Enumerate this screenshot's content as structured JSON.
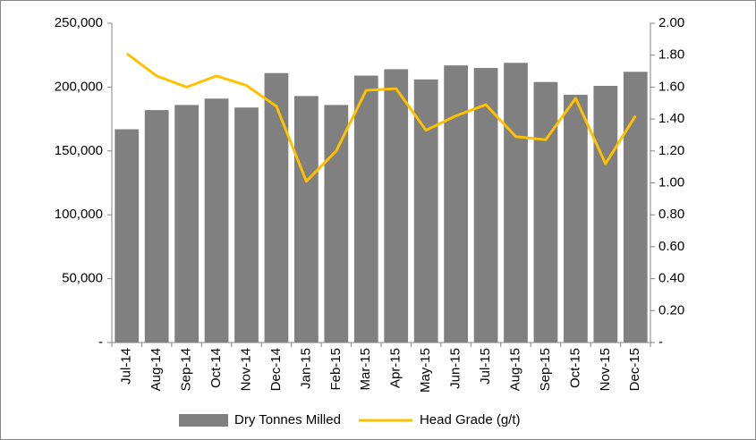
{
  "chart_data": {
    "type": "bar-line",
    "categories": [
      "Jul-14",
      "Aug-14",
      "Sep-14",
      "Oct-14",
      "Nov-14",
      "Dec-14",
      "Jan-15",
      "Feb-15",
      "Mar-15",
      "Apr-15",
      "May-15",
      "Jun-15",
      "Jul-15",
      "Aug-15",
      "Sep-15",
      "Oct-15",
      "Nov-15",
      "Dec-15"
    ],
    "series": [
      {
        "name": "Dry Tonnes Milled",
        "type": "bar",
        "color": "#808080",
        "axis": "y",
        "values": [
          167000,
          182000,
          186000,
          191000,
          184000,
          211000,
          193000,
          186000,
          209000,
          214000,
          206000,
          217000,
          215000,
          219000,
          204000,
          194000,
          201000,
          212000
        ]
      },
      {
        "name": "Head Grade (g/t)",
        "type": "line",
        "color": "#FFC000",
        "axis": "y2",
        "values": [
          1.81,
          1.67,
          1.6,
          1.67,
          1.61,
          1.48,
          1.01,
          1.2,
          1.58,
          1.59,
          1.33,
          1.42,
          1.49,
          1.29,
          1.27,
          1.53,
          1.12,
          1.42
        ]
      }
    ],
    "ylim": [
      0,
      250000
    ],
    "yticks": [
      {
        "value": 0,
        "label": "-"
      },
      {
        "value": 50000,
        "label": "50,000"
      },
      {
        "value": 100000,
        "label": "100,000"
      },
      {
        "value": 150000,
        "label": "150,000"
      },
      {
        "value": 200000,
        "label": "200,000"
      },
      {
        "value": 250000,
        "label": "250,000"
      }
    ],
    "y2lim": [
      0,
      2
    ],
    "y2ticks": [
      {
        "value": 0,
        "label": "-"
      },
      {
        "value": 0.2,
        "label": "0.20"
      },
      {
        "value": 0.4,
        "label": "0.40"
      },
      {
        "value": 0.6,
        "label": "0.60"
      },
      {
        "value": 0.8,
        "label": "0.80"
      },
      {
        "value": 1,
        "label": "1.00"
      },
      {
        "value": 1.2,
        "label": "1.20"
      },
      {
        "value": 1.4,
        "label": "1.40"
      },
      {
        "value": 1.6,
        "label": "1.60"
      },
      {
        "value": 1.8,
        "label": "1.80"
      },
      {
        "value": 2,
        "label": "2.00"
      }
    ],
    "legend": "bottom",
    "grid": false
  }
}
